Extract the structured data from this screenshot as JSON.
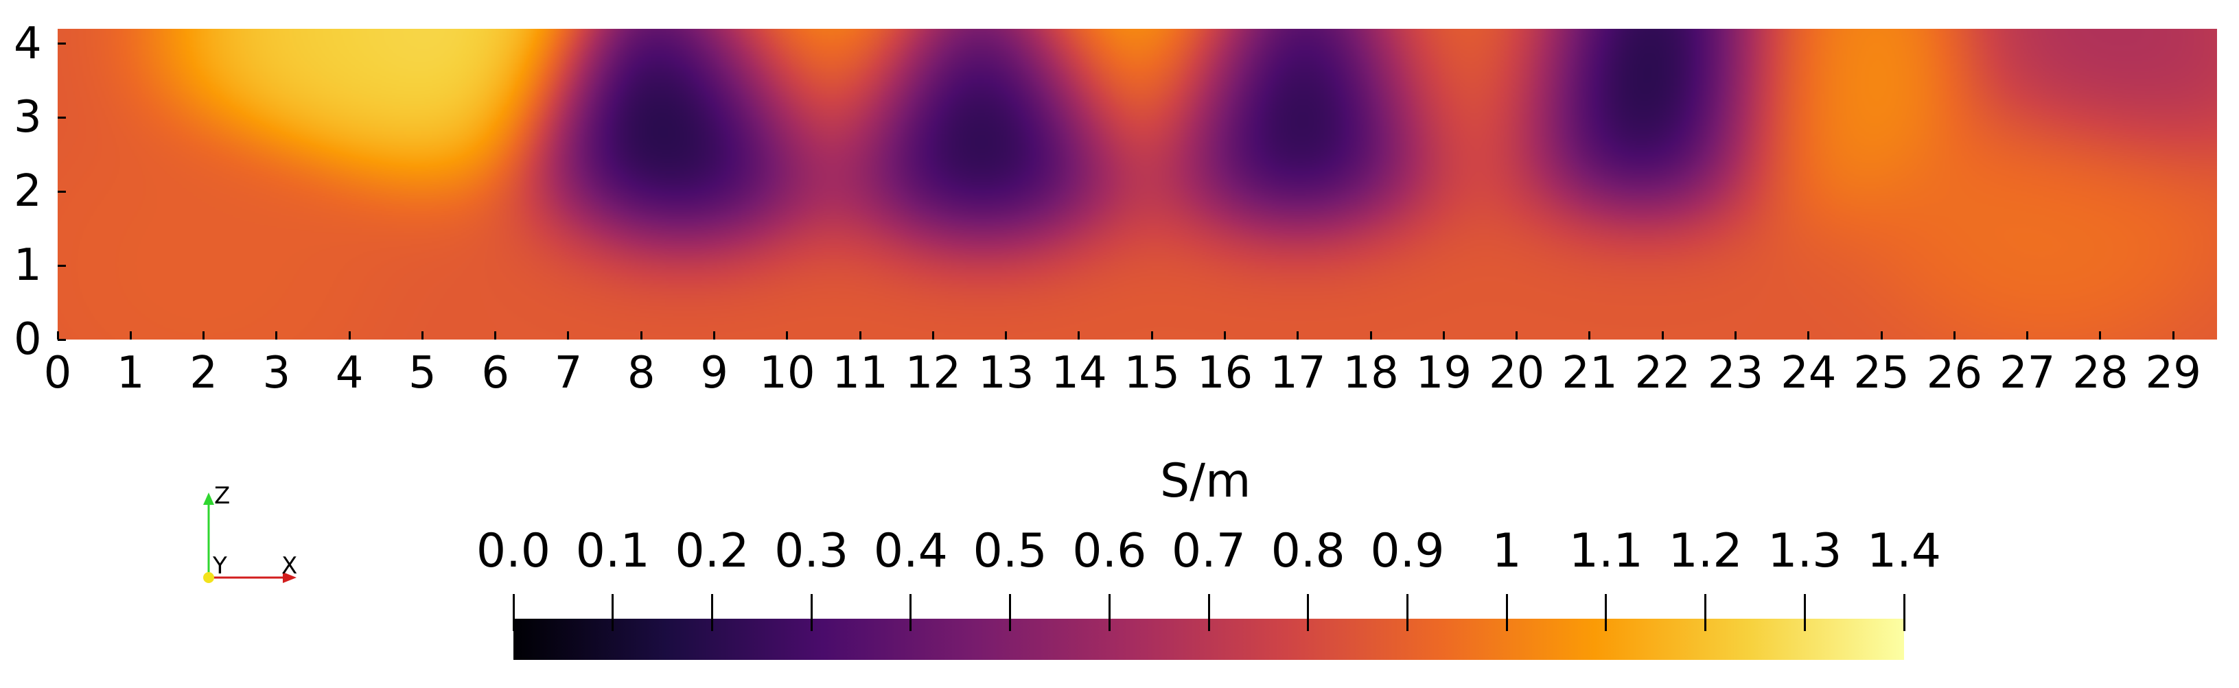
{
  "chart_data": {
    "type": "heatmap",
    "title": "",
    "xlabel": "",
    "ylabel": "",
    "xlim": [
      0,
      29.6
    ],
    "ylim": [
      0,
      4.2
    ],
    "x_ticks": [
      "0",
      "1",
      "2",
      "3",
      "4",
      "5",
      "6",
      "7",
      "8",
      "9",
      "10",
      "11",
      "12",
      "13",
      "14",
      "15",
      "16",
      "17",
      "18",
      "19",
      "20",
      "21",
      "22",
      "23",
      "24",
      "25",
      "26",
      "27",
      "28",
      "29"
    ],
    "y_ticks": [
      "0",
      "1",
      "2",
      "3",
      "4"
    ],
    "colormap": "inferno",
    "colorbar": {
      "title": "S/m",
      "range": [
        0.0,
        1.4
      ],
      "tick_values": [
        0.0,
        0.1,
        0.2,
        0.3,
        0.4,
        0.5,
        0.6,
        0.7,
        0.8,
        0.9,
        1.0,
        1.1,
        1.2,
        1.3,
        1.4
      ],
      "tick_labels": [
        "0.0",
        "0.1",
        "0.2",
        "0.3",
        "0.4",
        "0.5",
        "0.6",
        "0.7",
        "0.8",
        "0.9",
        "1",
        "1.1",
        "1.2",
        "1.3",
        "1.4"
      ],
      "stops": [
        "#000004",
        "#1b0c41",
        "#4a0c6b",
        "#781c6d",
        "#a52c60",
        "#cf4446",
        "#ed6925",
        "#fb9b06",
        "#f7d13d",
        "#fcffa4"
      ]
    },
    "background_value": 0.87,
    "features": [
      {
        "x": 3.8,
        "y": 4.2,
        "value": 1.28
      },
      {
        "x": 5.6,
        "y": 4.1,
        "value": 1.32
      },
      {
        "x": 8.6,
        "y": 3.3,
        "value": 0.0
      },
      {
        "x": 10.5,
        "y": 4.1,
        "value": 1.2
      },
      {
        "x": 12.7,
        "y": 3.3,
        "value": 0.0
      },
      {
        "x": 14.8,
        "y": 4.1,
        "value": 1.25
      },
      {
        "x": 17.0,
        "y": 3.5,
        "value": 0.0
      },
      {
        "x": 19.3,
        "y": 4.0,
        "value": 1.0
      },
      {
        "x": 21.8,
        "y": 3.7,
        "value": 0.0
      },
      {
        "x": 24.4,
        "y": 3.6,
        "value": 1.08
      },
      {
        "x": 28.0,
        "y": 3.9,
        "value": 0.62
      },
      {
        "x": 27.3,
        "y": 1.8,
        "value": 0.97
      },
      {
        "x": 2.0,
        "y": 1.0,
        "value": 0.9
      }
    ]
  },
  "axes_triad": {
    "labels": [
      "Z",
      "Y",
      "X"
    ]
  }
}
